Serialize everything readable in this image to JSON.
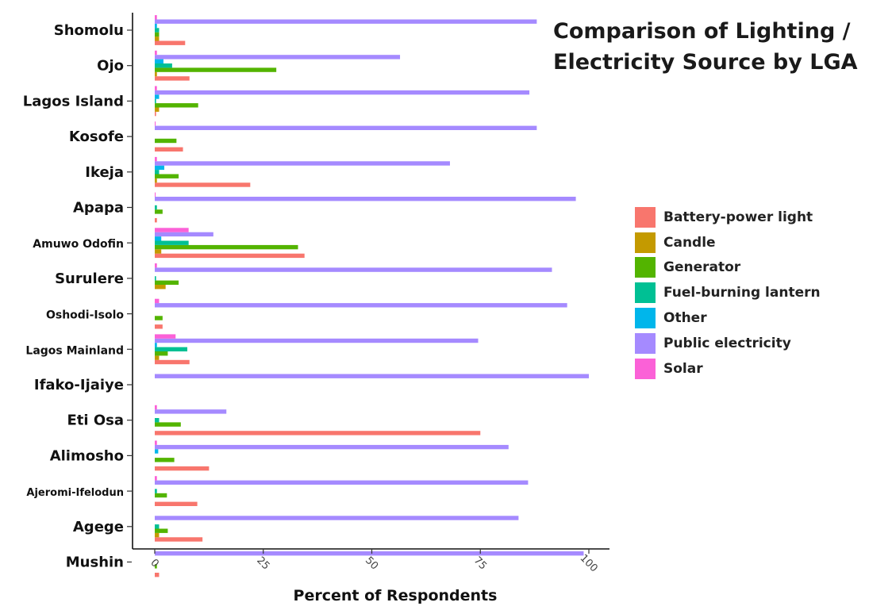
{
  "chart_data": {
    "type": "bar",
    "orientation": "horizontal",
    "title_lines": [
      "Comparison of Lighting /",
      "Electricity Source by LGA"
    ],
    "xlabel": "Percent of Respondents",
    "ylabel": "",
    "xlim": [
      0,
      100
    ],
    "x_ticks": [
      "0",
      "25",
      "50",
      "75",
      "100"
    ],
    "grid": false,
    "legend_position": "right",
    "categories": [
      "Shomolu",
      "Ojo",
      "Lagos Island",
      "Kosofe",
      "Ikeja",
      "Apapa",
      "Amuwo Odofin",
      "Surulere",
      "Oshodi-Isolo",
      "Lagos Mainland",
      "Ifako-Ijaiye",
      "Eti Osa",
      "Alimosho",
      "Ajeromi-Ifelodun",
      "Agege",
      "Mushin"
    ],
    "series": [
      {
        "name": "Battery-power light",
        "color": "#F8766D",
        "values": [
          7,
          8,
          0.3,
          6.5,
          22,
          0.5,
          34.5,
          0,
          1.8,
          8,
          0,
          75,
          12.5,
          9.8,
          11,
          1
        ]
      },
      {
        "name": "Candle",
        "color": "#C49A00",
        "values": [
          1,
          0.5,
          1,
          0,
          0.5,
          0,
          1.5,
          2.5,
          0,
          1,
          0,
          0,
          0,
          0,
          1,
          0
        ]
      },
      {
        "name": "Generator",
        "color": "#53B400",
        "values": [
          1,
          28,
          10,
          5,
          5.5,
          1.8,
          33,
          5.5,
          1.8,
          3,
          0,
          6,
          4.5,
          2.8,
          3,
          0.5
        ]
      },
      {
        "name": "Fuel-burning lantern",
        "color": "#00C094",
        "values": [
          1,
          4,
          0.3,
          0,
          1,
          0.5,
          7.8,
          0.3,
          0,
          7.5,
          0,
          1,
          0,
          0.5,
          1,
          0
        ]
      },
      {
        "name": "Other",
        "color": "#00B6EB",
        "values": [
          0.5,
          2,
          1,
          0,
          2.2,
          0,
          1.5,
          0,
          0,
          0.5,
          0,
          0,
          0.8,
          0,
          0,
          0
        ]
      },
      {
        "name": "Public electricity",
        "color": "#A58AFF",
        "values": [
          88,
          56.5,
          86.3,
          88,
          68,
          97,
          13.5,
          91.5,
          95,
          74.5,
          100,
          16.5,
          81.5,
          86,
          83.8,
          98.8
        ]
      },
      {
        "name": "Solar",
        "color": "#FB61D7",
        "values": [
          0.5,
          0.5,
          0.5,
          0.2,
          0.5,
          0.2,
          7.8,
          0.5,
          1,
          4.8,
          0,
          0.5,
          0.5,
          0.5,
          0,
          0
        ]
      }
    ]
  }
}
